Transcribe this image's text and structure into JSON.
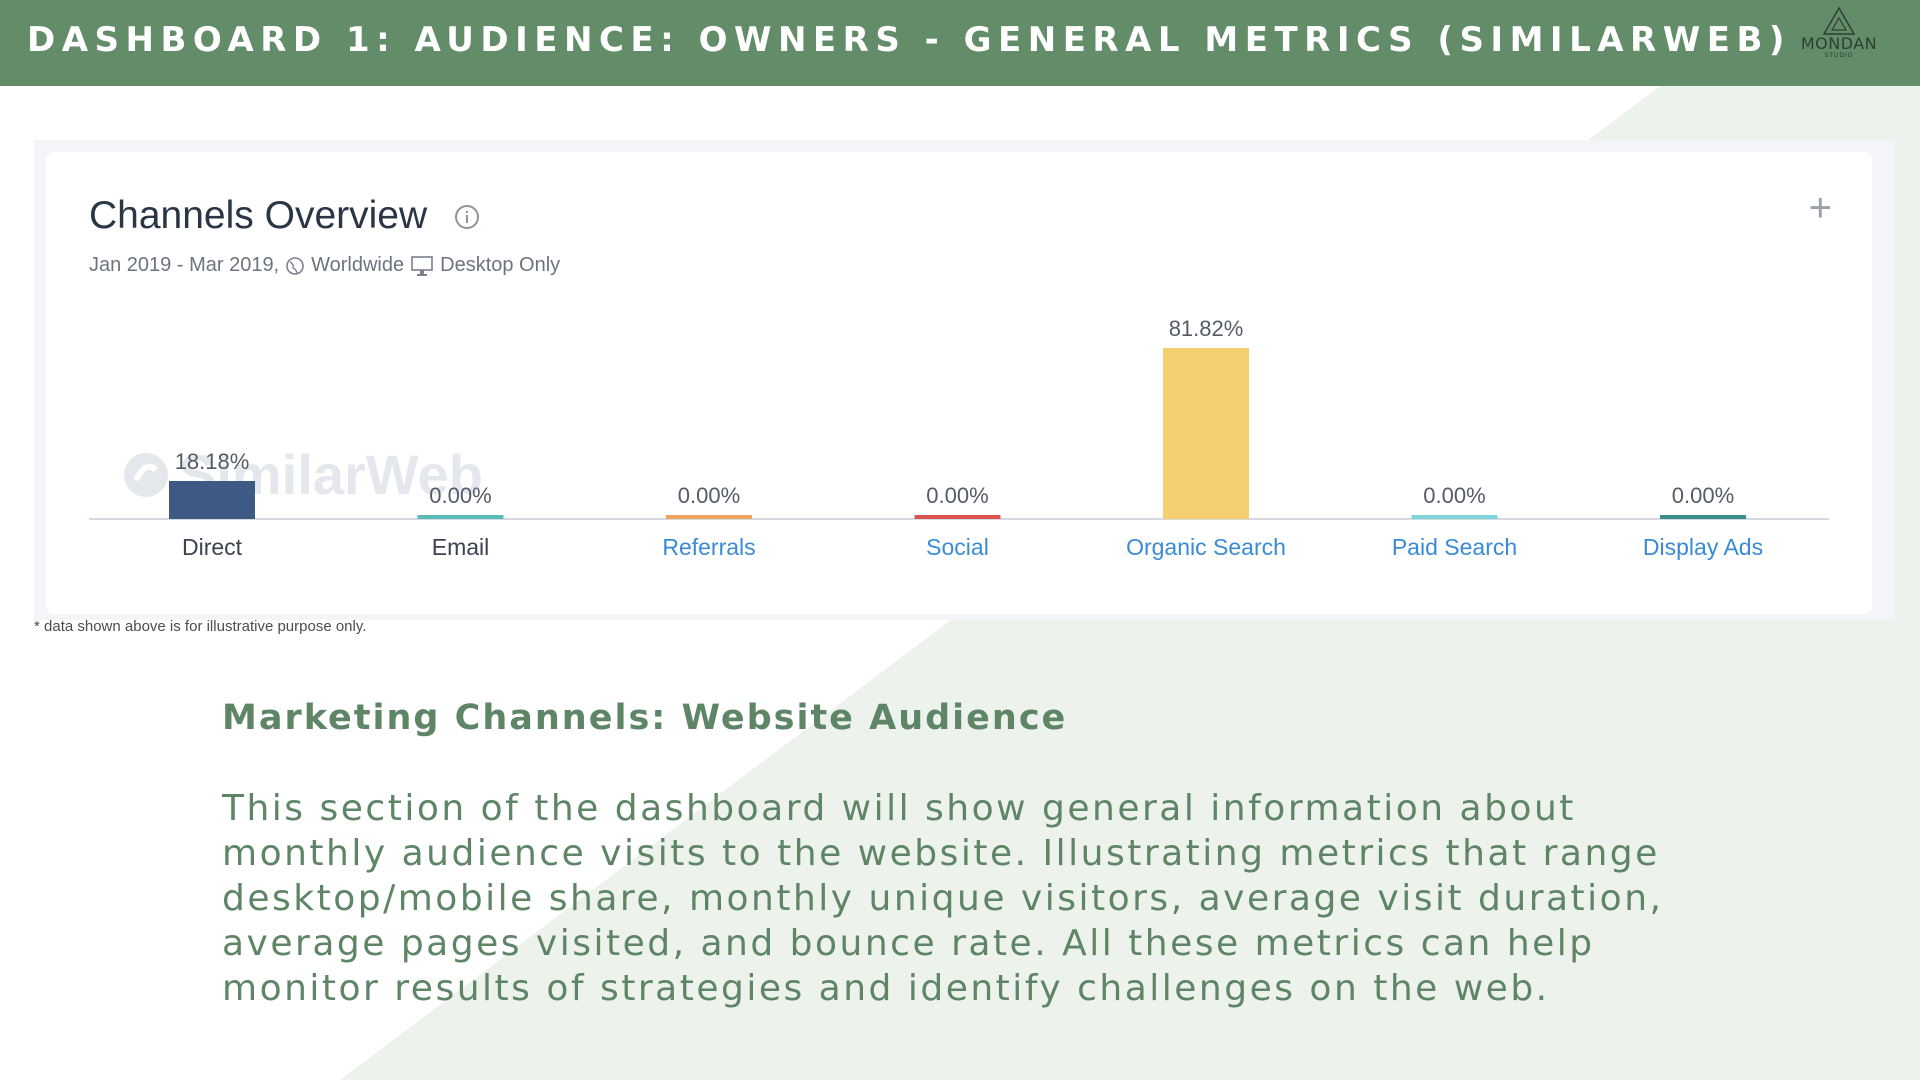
{
  "header": {
    "title": "DASHBOARD 1: AUDIENCE: OWNERS - GENERAL METRICS (SIMILARWEB)",
    "logo_name": "MONDAN",
    "logo_sub": "STUDIO"
  },
  "card": {
    "title": "Channels Overview",
    "date_range": "Jan 2019 - Mar 2019,",
    "region": "Worldwide",
    "device": "Desktop Only",
    "watermark": "SimilarWeb"
  },
  "chart_data": {
    "type": "bar",
    "title": "Channels Overview",
    "categories": [
      "Direct",
      "Email",
      "Referrals",
      "Social",
      "Organic Search",
      "Paid Search",
      "Display Ads"
    ],
    "values": [
      18.18,
      0.0,
      0.0,
      0.0,
      81.82,
      0.0,
      0.0
    ],
    "value_labels": [
      "18.18%",
      "0.00%",
      "0.00%",
      "0.00%",
      "81.82%",
      "0.00%",
      "0.00%"
    ],
    "colors": [
      "#3d5a85",
      "#5bbcb7",
      "#f0a25f",
      "#d9534f",
      "#f3cf6f",
      "#7fd3dc",
      "#3a8f8a"
    ],
    "category_colors": [
      "#3c4350",
      "#3c4350",
      "#3a8bd6",
      "#3a8bd6",
      "#3a8bd6",
      "#3a8bd6",
      "#3a8bd6"
    ],
    "ylim": [
      0,
      100
    ],
    "xlabel": "",
    "ylabel": ""
  },
  "footnote": "* data shown above is for illustrative purpose only.",
  "section": {
    "title": "Marketing Channels: Website Audience",
    "body_lines": [
      "This section of the dashboard will show general information about",
      "monthly audience visits to the website. Illustrating metrics that range",
      "desktop/mobile share, monthly unique visitors, average visit duration,",
      "average pages visited, and bounce rate. All these metrics can help",
      "monitor results of strategies and identify challenges on the web."
    ]
  }
}
